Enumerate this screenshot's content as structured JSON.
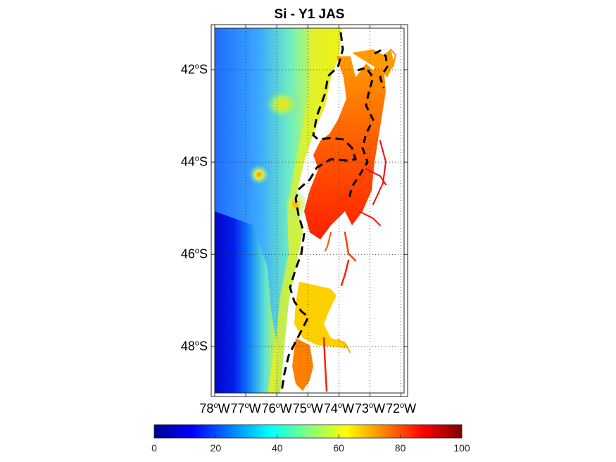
{
  "title": "Si - Y1 JAS",
  "lat_axis": {
    "ticks": [
      {
        "deg": "42",
        "hemi": "S",
        "value": -42
      },
      {
        "deg": "44",
        "hemi": "S",
        "value": -44
      },
      {
        "deg": "46",
        "hemi": "S",
        "value": -46
      },
      {
        "deg": "48",
        "hemi": "S",
        "value": -48
      }
    ],
    "range": [
      -49,
      -41.1
    ]
  },
  "lon_axis": {
    "ticks": [
      {
        "deg": "78",
        "hemi": "W",
        "value": -78
      },
      {
        "deg": "77",
        "hemi": "W",
        "value": -77
      },
      {
        "deg": "76",
        "hemi": "W",
        "value": -76
      },
      {
        "deg": "75",
        "hemi": "W",
        "value": -75
      },
      {
        "deg": "74",
        "hemi": "W",
        "value": -74
      },
      {
        "deg": "73",
        "hemi": "W",
        "value": -73
      },
      {
        "deg": "72",
        "hemi": "W",
        "value": -72
      }
    ],
    "range": [
      -78,
      -71.9
    ]
  },
  "colorbar": {
    "ticks": [
      "0",
      "20",
      "40",
      "60",
      "80",
      "100"
    ],
    "range": [
      0,
      100
    ],
    "colormap": "jet"
  },
  "colors": {
    "frame": "#262626",
    "grid": "#262626",
    "contour": "#000000"
  }
}
